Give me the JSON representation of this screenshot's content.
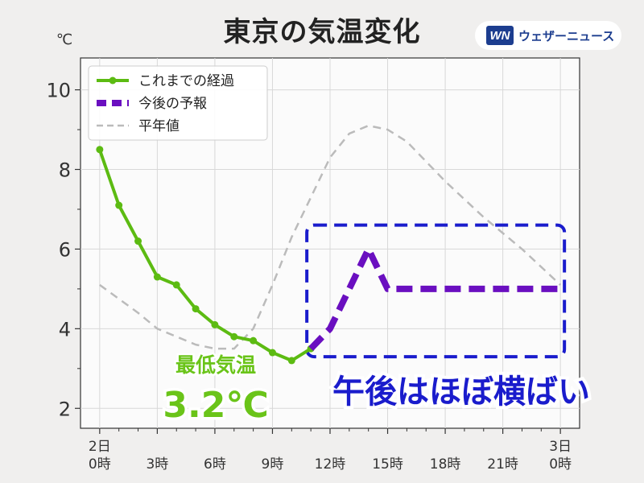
{
  "title": "東京の気温変化",
  "brand": {
    "logo": "WN",
    "name": "ウェザーニュース"
  },
  "chart_data": {
    "type": "line",
    "unit_label": "℃",
    "ylim": [
      1.5,
      10.8
    ],
    "yticks": [
      2,
      4,
      6,
      8,
      10
    ],
    "xlim": [
      -1,
      25
    ],
    "x_tick_labels": [
      {
        "x": 0,
        "lines": [
          "2日",
          "0時"
        ]
      },
      {
        "x": 3,
        "lines": [
          "3時"
        ]
      },
      {
        "x": 6,
        "lines": [
          "6時"
        ]
      },
      {
        "x": 9,
        "lines": [
          "9時"
        ]
      },
      {
        "x": 12,
        "lines": [
          "12時"
        ]
      },
      {
        "x": 15,
        "lines": [
          "15時"
        ]
      },
      {
        "x": 18,
        "lines": [
          "18時"
        ]
      },
      {
        "x": 21,
        "lines": [
          "21時"
        ]
      },
      {
        "x": 24,
        "lines": [
          "3日",
          "0時"
        ]
      }
    ],
    "grid": true,
    "legend_position": "top-left",
    "series": [
      {
        "name": "これまでの経過",
        "style": "solid-marker",
        "color": "#5cbb12",
        "x": [
          0,
          1,
          2,
          3,
          4,
          5,
          6,
          7,
          8,
          9,
          10,
          11
        ],
        "y": [
          8.5,
          7.1,
          6.2,
          5.3,
          5.1,
          4.5,
          4.1,
          3.8,
          3.7,
          3.4,
          3.2,
          3.5
        ]
      },
      {
        "name": "今後の予報",
        "style": "dashed-thick",
        "color": "#6a0fc0",
        "x": [
          11,
          12,
          14,
          15,
          16,
          18,
          20,
          22,
          24
        ],
        "y": [
          3.5,
          4.0,
          6.0,
          5.0,
          5.0,
          5.0,
          5.0,
          5.0,
          5.0
        ]
      },
      {
        "name": "平年値",
        "style": "dashed-thin",
        "color": "#bbbbbb",
        "x": [
          0,
          2,
          3,
          4,
          5,
          6,
          7,
          8,
          9,
          10,
          11,
          12,
          13,
          14,
          15,
          16,
          18,
          20,
          22,
          24
        ],
        "y": [
          5.1,
          4.4,
          4.0,
          3.8,
          3.6,
          3.5,
          3.5,
          4.0,
          5.1,
          6.3,
          7.3,
          8.3,
          8.9,
          9.1,
          9.0,
          8.7,
          7.7,
          6.8,
          6.0,
          5.1
        ]
      }
    ],
    "annotations": {
      "min_label": "最低気温",
      "min_value": "3.2℃",
      "highlight_x": [
        11,
        24
      ],
      "highlight_y": [
        3.6,
        6.3
      ],
      "callout": "午後はほぼ横ばい"
    }
  }
}
